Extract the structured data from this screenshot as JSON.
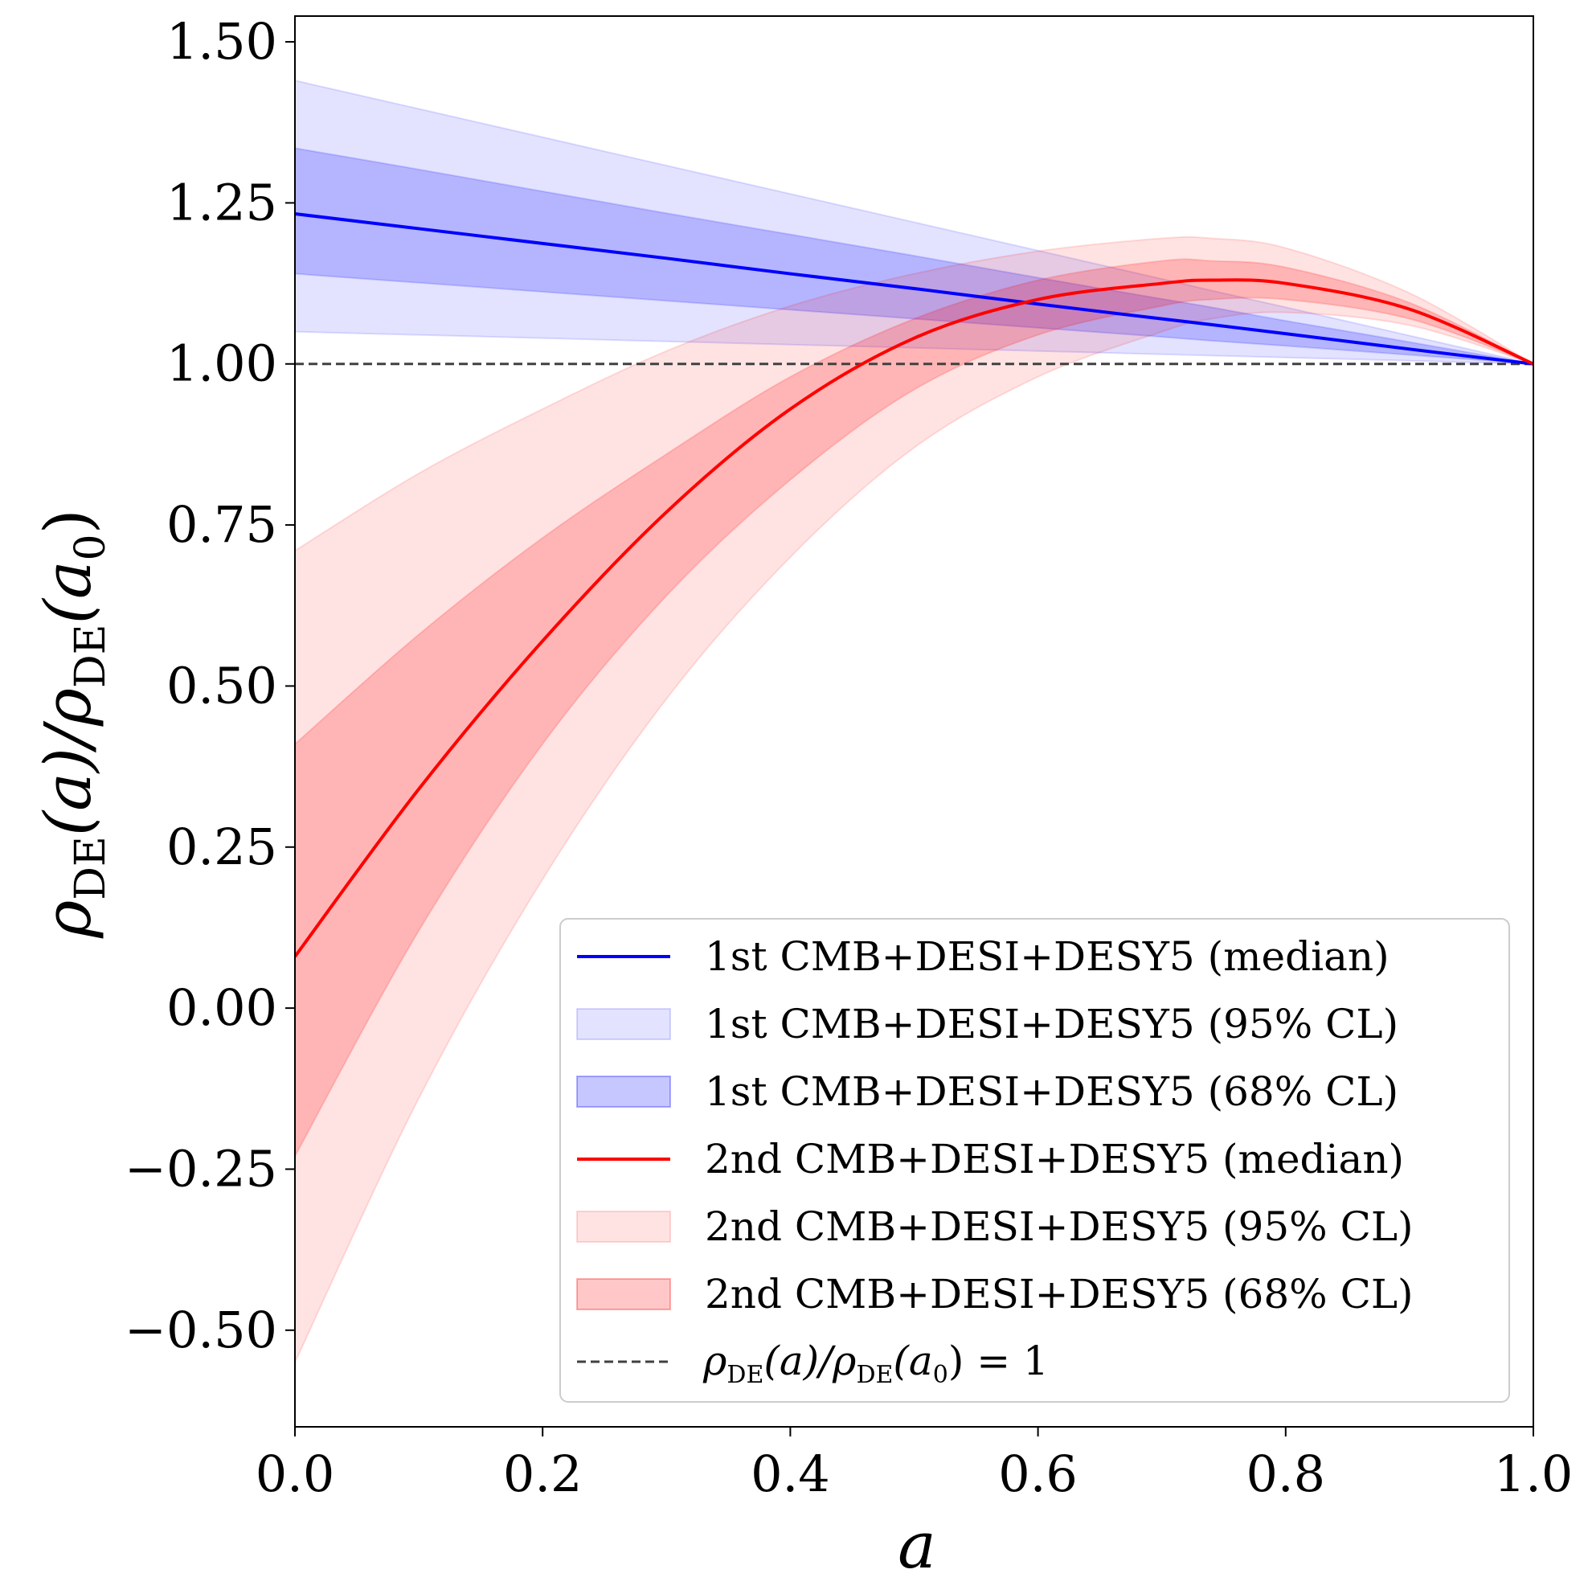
{
  "chart_data": {
    "type": "line",
    "xlabel": "a",
    "ylabel": {
      "base1": "ρ",
      "sub1": "DE",
      "mid": "(a)/",
      "base2": "ρ",
      "sub2": "DE",
      "tail_open": "(a",
      "tail_sub": "0",
      "tail_close": ")"
    },
    "xlim": [
      0.0,
      1.0
    ],
    "ylim": [
      -0.65,
      1.54
    ],
    "x_ticks": [
      0.0,
      0.2,
      0.4,
      0.6,
      0.8,
      1.0
    ],
    "x_tick_labels": [
      "0.0",
      "0.2",
      "0.4",
      "0.6",
      "0.8",
      "1.0"
    ],
    "y_ticks": [
      -0.5,
      -0.25,
      0.0,
      0.25,
      0.5,
      0.75,
      1.0,
      1.25,
      1.5
    ],
    "y_tick_labels": [
      "−0.50",
      "−0.25",
      "0.00",
      "0.25",
      "0.50",
      "0.75",
      "1.00",
      "1.25",
      "1.50"
    ],
    "grid": false,
    "legend_position": "lower-right",
    "x": [
      0.0,
      0.1,
      0.2,
      0.3,
      0.4,
      0.5,
      0.6,
      0.7,
      0.74,
      0.8,
      0.9,
      1.0
    ],
    "series": [
      {
        "name": "1st CMB+DESI+DESY5",
        "color": "#0000ff",
        "median": [
          1.233,
          1.21,
          1.187,
          1.164,
          1.14,
          1.117,
          1.093,
          1.07,
          1.061,
          1.047,
          1.023,
          1.0
        ],
        "ci95_lower": [
          1.05,
          1.045,
          1.04,
          1.035,
          1.03,
          1.025,
          1.02,
          1.015,
          1.013,
          1.01,
          1.005,
          1.0
        ],
        "ci95_upper": [
          1.44,
          1.396,
          1.352,
          1.308,
          1.264,
          1.22,
          1.176,
          1.132,
          1.114,
          1.088,
          1.044,
          1.0
        ],
        "ci68_lower": [
          1.14,
          1.126,
          1.112,
          1.098,
          1.084,
          1.07,
          1.056,
          1.042,
          1.036,
          1.028,
          1.014,
          1.0
        ],
        "ci68_upper": [
          1.335,
          1.302,
          1.268,
          1.234,
          1.201,
          1.168,
          1.134,
          1.101,
          1.088,
          1.067,
          1.034,
          1.0
        ]
      },
      {
        "name": "2nd CMB+DESI+DESY5",
        "color": "#ff0000",
        "median": [
          0.08,
          0.34,
          0.57,
          0.77,
          0.93,
          1.04,
          1.1,
          1.125,
          1.13,
          1.125,
          1.085,
          1.0
        ],
        "ci95_lower": [
          -0.55,
          -0.14,
          0.2,
          0.48,
          0.7,
          0.87,
          0.98,
          1.05,
          1.07,
          1.08,
          1.06,
          1.0
        ],
        "ci95_upper": [
          0.71,
          0.83,
          0.93,
          1.02,
          1.09,
          1.14,
          1.175,
          1.195,
          1.195,
          1.18,
          1.11,
          1.0
        ],
        "ci68_lower": [
          -0.23,
          0.12,
          0.41,
          0.64,
          0.82,
          0.96,
          1.045,
          1.09,
          1.1,
          1.1,
          1.07,
          1.0
        ],
        "ci68_upper": [
          0.41,
          0.58,
          0.73,
          0.86,
          0.98,
          1.07,
          1.13,
          1.16,
          1.16,
          1.15,
          1.095,
          1.0
        ]
      }
    ],
    "reference_line": {
      "y": 1.0,
      "style": "dashed",
      "color": "#404040"
    },
    "legend": [
      {
        "kind": "line",
        "label": "1st CMB+DESI+DESY5 (median)",
        "color": "#0000ff"
      },
      {
        "kind": "patch95",
        "label": "1st CMB+DESI+DESY5 (95% CL)",
        "color": "#0000ff"
      },
      {
        "kind": "patch68",
        "label": "1st CMB+DESI+DESY5 (68% CL)",
        "color": "#0000ff"
      },
      {
        "kind": "line",
        "label": "2nd CMB+DESI+DESY5 (median)",
        "color": "#ff0000"
      },
      {
        "kind": "patch95",
        "label": "2nd CMB+DESI+DESY5 (95% CL)",
        "color": "#ff0000"
      },
      {
        "kind": "patch68",
        "label": "2nd CMB+DESI+DESY5 (68% CL)",
        "color": "#ff0000"
      },
      {
        "kind": "dashed",
        "label": "",
        "color": "#404040"
      }
    ],
    "reference_legend_label": {
      "base1": "ρ",
      "sub1": "DE",
      "mid": "(a)/",
      "base2": "ρ",
      "sub2": "DE",
      "tail_open": "(a",
      "tail_sub": "0",
      "tail_close": ") = 1"
    }
  }
}
